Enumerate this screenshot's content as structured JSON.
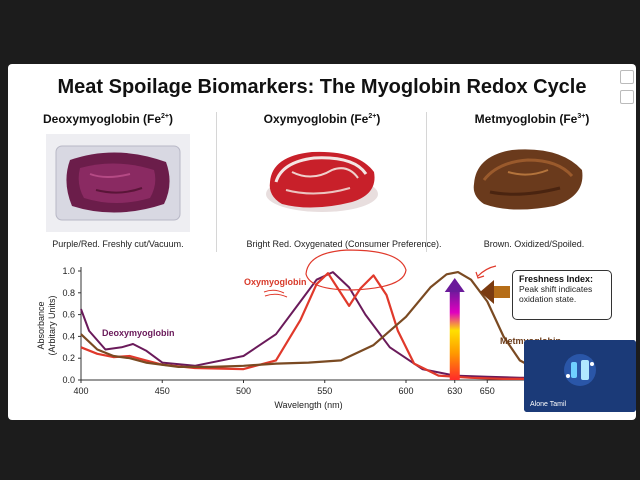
{
  "slide": {
    "title": "Meat Spoilage Biomarkers: The Myoglobin Redox Cycle",
    "columns": [
      {
        "name": "Deoxymyoglobin",
        "ion": "(Fe",
        "charge": "2+",
        "close": ")",
        "caption": "Purple/Red. Freshly cut/Vacuum."
      },
      {
        "name": "Oxymyoglobin",
        "ion": "(Fe",
        "charge": "2+",
        "close": ")",
        "caption": "Bright Red. Oxygenated (Consumer Preference)."
      },
      {
        "name": "Metmyoglobin",
        "ion": "(Fe",
        "charge": "3+",
        "close": ")",
        "caption": "Brown. Oxidized/Spoiled."
      }
    ]
  },
  "chart_data": {
    "type": "line",
    "xlabel": "Wavelength (nm)",
    "ylabel_line1": "Absorbance",
    "ylabel_line2": "(Arbitary Units)",
    "xlim": [
      400,
      680
    ],
    "ylim": [
      0,
      1.0
    ],
    "x_ticks": [
      400,
      450,
      500,
      550,
      600,
      630,
      650
    ],
    "y_ticks": [
      0,
      0.2,
      0.4,
      0.6,
      0.8,
      1.0
    ],
    "series": [
      {
        "name": "Deoxymyoglobin",
        "color": "#6a1a5a",
        "x": [
          400,
          405,
          415,
          425,
          432,
          440,
          450,
          470,
          500,
          520,
          535,
          545,
          555,
          565,
          575,
          590,
          610,
          630,
          650,
          670,
          680
        ],
        "y": [
          0.65,
          0.45,
          0.28,
          0.3,
          0.33,
          0.27,
          0.16,
          0.13,
          0.22,
          0.42,
          0.72,
          0.92,
          0.99,
          0.85,
          0.6,
          0.3,
          0.1,
          0.04,
          0.03,
          0.02,
          0.02
        ]
      },
      {
        "name": "Oxymyoglobin",
        "color": "#e0392b",
        "x": [
          400,
          410,
          420,
          430,
          440,
          450,
          470,
          500,
          520,
          535,
          545,
          552,
          558,
          565,
          572,
          580,
          588,
          595,
          605,
          620,
          640,
          660,
          680
        ],
        "y": [
          0.3,
          0.24,
          0.21,
          0.22,
          0.18,
          0.14,
          0.11,
          0.1,
          0.18,
          0.55,
          0.88,
          0.98,
          0.84,
          0.68,
          0.84,
          0.96,
          0.78,
          0.45,
          0.15,
          0.04,
          0.02,
          0.01,
          0.01
        ]
      },
      {
        "name": "Metmyoglobin",
        "color": "#7a4a22",
        "x": [
          400,
          410,
          420,
          430,
          440,
          460,
          480,
          500,
          520,
          540,
          560,
          580,
          600,
          615,
          625,
          632,
          640,
          650,
          660,
          670,
          680
        ],
        "y": [
          0.42,
          0.28,
          0.22,
          0.2,
          0.16,
          0.12,
          0.12,
          0.13,
          0.15,
          0.16,
          0.18,
          0.32,
          0.58,
          0.85,
          0.97,
          0.99,
          0.92,
          0.72,
          0.4,
          0.18,
          0.1
        ]
      }
    ],
    "labels": {
      "deoxy": "Deoxymyoglobin",
      "oxy": "Oxymyoglobin",
      "met": "Metmyoglobin"
    }
  },
  "callout": {
    "title": "Freshness Index:",
    "line1": "Peak shift indicates",
    "line2": "oxidation state."
  },
  "participant": {
    "name": "Alone Tamil"
  }
}
